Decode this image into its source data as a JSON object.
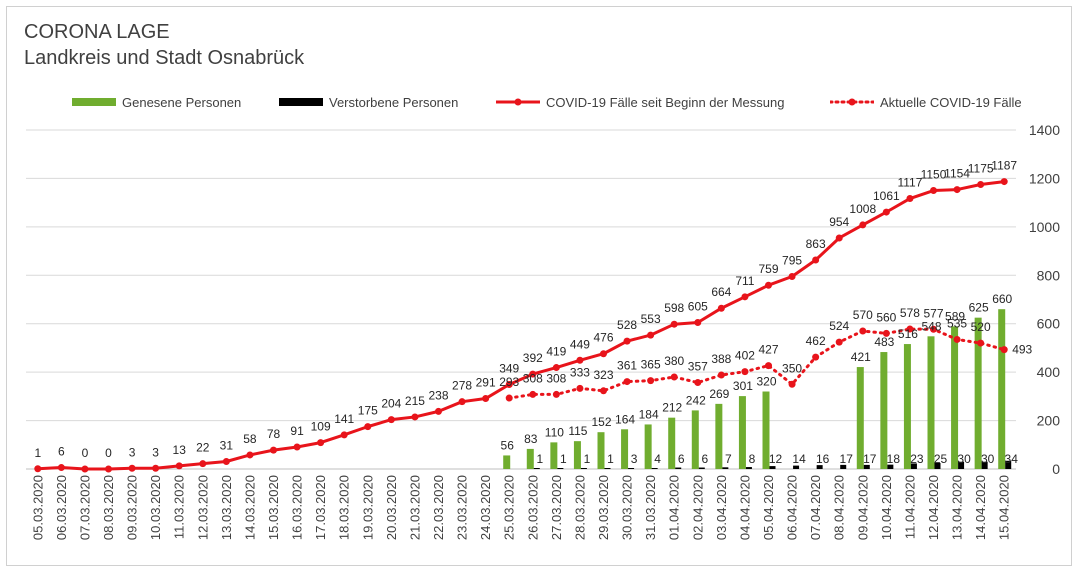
{
  "header": {
    "title": "CORONA LAGE",
    "subtitle": "Landkreis und Stadt Osnabrück"
  },
  "legend": {
    "recovered": "Genesene Personen",
    "deceased": "Verstorbene Personen",
    "cumulative": "COVID-19 Fälle seit Beginn der Messung",
    "current": "Aktuelle COVID-19 Fälle"
  },
  "colors": {
    "recovered": "#70ad2f",
    "deceased": "#000000",
    "cumulative": "#e8141b",
    "current": "#e8141b",
    "grid": "#d9d9d9",
    "text": "#404040"
  },
  "chart_data": {
    "type": "bar",
    "title": "CORONA LAGE",
    "subtitle": "Landkreis und Stadt Osnabrück",
    "ylim": [
      0,
      1400
    ],
    "yticks": [
      0,
      200,
      400,
      600,
      800,
      1000,
      1200,
      1400
    ],
    "grid": true,
    "legend_position": "top",
    "categories": [
      "05.03.2020",
      "06.03.2020",
      "07.03.2020",
      "08.03.2020",
      "09.03.2020",
      "10.03.2020",
      "11.03.2020",
      "12.03.2020",
      "13.03.2020",
      "14.03.2020",
      "15.03.2020",
      "16.03.2020",
      "17.03.2020",
      "18.03.2020",
      "19.03.2020",
      "20.03.2020",
      "21.03.2020",
      "22.03.2020",
      "23.03.2020",
      "24.03.2020",
      "25.03.2020",
      "26.03.2020",
      "27.03.2020",
      "28.03.2020",
      "29.03.2020",
      "30.03.2020",
      "31.03.2020",
      "01.04.2020",
      "02.04.2020",
      "03.04.2020",
      "04.04.2020",
      "05.04.2020",
      "06.04.2020",
      "07.04.2020",
      "08.04.2020",
      "09.04.2020",
      "10.04.2020",
      "11.04.2020",
      "12.04.2020",
      "13.04.2020",
      "14.04.2020",
      "15.04.2020"
    ],
    "series": [
      {
        "name": "Genesene Personen",
        "kind": "bar",
        "values": [
          null,
          null,
          null,
          null,
          null,
          null,
          null,
          null,
          null,
          null,
          null,
          null,
          null,
          null,
          null,
          null,
          null,
          null,
          null,
          null,
          56,
          83,
          110,
          115,
          152,
          164,
          184,
          212,
          242,
          269,
          301,
          320,
          null,
          null,
          null,
          421,
          483,
          516,
          548,
          589,
          625,
          660
        ]
      },
      {
        "name": "Verstorbene Personen",
        "kind": "bar",
        "values": [
          null,
          null,
          null,
          null,
          null,
          null,
          null,
          null,
          null,
          null,
          null,
          null,
          null,
          null,
          null,
          null,
          null,
          null,
          null,
          null,
          null,
          1,
          1,
          1,
          1,
          3,
          4,
          6,
          6,
          7,
          8,
          12,
          14,
          16,
          17,
          17,
          18,
          23,
          25,
          30,
          30,
          34
        ]
      },
      {
        "name": "COVID-19 Fälle seit Beginn der Messung",
        "kind": "line",
        "values": [
          1,
          6,
          0,
          0,
          3,
          3,
          13,
          22,
          31,
          58,
          78,
          91,
          109,
          141,
          175,
          204,
          215,
          238,
          278,
          291,
          349,
          392,
          419,
          449,
          476,
          528,
          553,
          598,
          605,
          664,
          711,
          759,
          795,
          863,
          954,
          1008,
          1061,
          1117,
          1150,
          1154,
          1175,
          1187
        ]
      },
      {
        "name": "Aktuelle COVID-19 Fälle",
        "kind": "dotted-line",
        "values": [
          null,
          null,
          null,
          null,
          null,
          null,
          null,
          null,
          null,
          null,
          null,
          null,
          null,
          null,
          null,
          null,
          null,
          null,
          null,
          null,
          293,
          308,
          308,
          333,
          323,
          361,
          365,
          380,
          357,
          388,
          402,
          427,
          350,
          462,
          524,
          570,
          560,
          578,
          577,
          535,
          520,
          493
        ]
      }
    ]
  }
}
